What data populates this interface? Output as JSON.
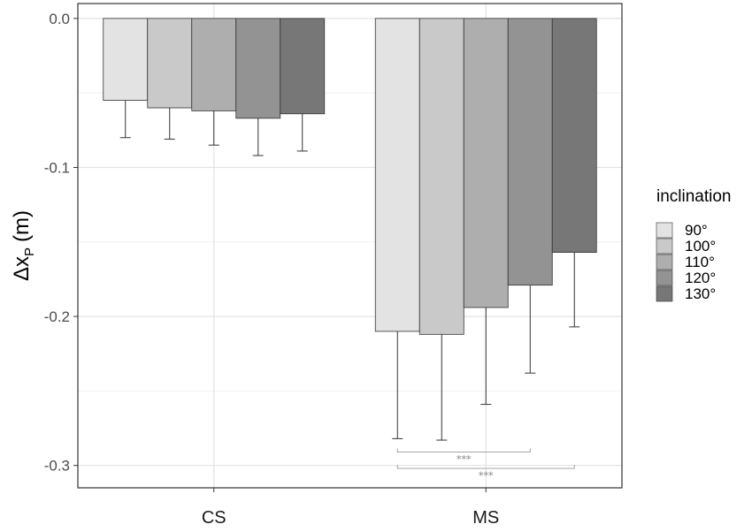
{
  "chart_data": {
    "type": "bar",
    "categories": [
      "CS",
      "MS"
    ],
    "ylabel": "Δx",
    "ylabel_subscript": "P",
    "ylabel_unit": "(m)",
    "ylim": [
      -0.315,
      0.01
    ],
    "yticks": [
      0.0,
      -0.1,
      -0.2,
      -0.3
    ],
    "ytick_labels": [
      "0.0",
      "-0.1",
      "-0.2",
      "-0.3"
    ],
    "grid": true,
    "legend": {
      "title": "inclination",
      "placement": "right"
    },
    "series": [
      {
        "name": "90°",
        "color": "#e3e3e3",
        "values": [
          -0.055,
          -0.21
        ],
        "errors": [
          0.025,
          0.072
        ]
      },
      {
        "name": "100°",
        "color": "#c9c9c9",
        "values": [
          -0.06,
          -0.212
        ],
        "errors": [
          0.021,
          0.071
        ]
      },
      {
        "name": "110°",
        "color": "#aeaeae",
        "values": [
          -0.062,
          -0.194
        ],
        "errors": [
          0.023,
          0.065
        ]
      },
      {
        "name": "120°",
        "color": "#939393",
        "values": [
          -0.067,
          -0.179
        ],
        "errors": [
          0.025,
          0.059
        ]
      },
      {
        "name": "130°",
        "color": "#777777",
        "values": [
          -0.064,
          -0.157
        ],
        "errors": [
          0.025,
          0.05
        ]
      }
    ],
    "significance": [
      {
        "category": "MS",
        "from_series": 0,
        "to_series": 3,
        "label": "***",
        "y": -0.291
      },
      {
        "category": "MS",
        "from_series": 0,
        "to_series": 4,
        "label": "***",
        "y": -0.302
      }
    ]
  }
}
